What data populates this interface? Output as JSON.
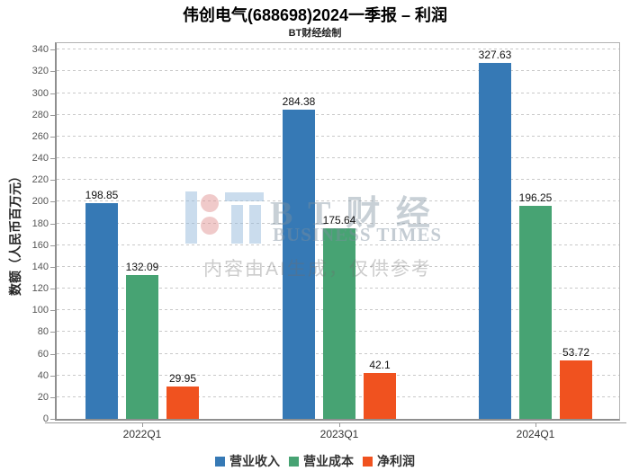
{
  "title": "伟创电气(688698)2024一季报 – 利润",
  "subtitle": "BT财经绘制",
  "watermark": {
    "logo_name": "bt-logo",
    "brand_cn": "B T 财 经",
    "brand_en": "BUSINESS TIMES",
    "ai_notice": "内容由AI生成，仅供参考"
  },
  "chart_data": {
    "type": "bar",
    "title": "伟创电气(688698)2024一季报 – 利润",
    "subtitle": "BT财经绘制",
    "categories": [
      "2022Q1",
      "2023Q1",
      "2024Q1"
    ],
    "series": [
      {
        "name": "营业收入",
        "color": "#3679b5",
        "values": [
          198.85,
          284.38,
          327.63
        ],
        "labels": [
          "198.85",
          "284.38",
          "327.63"
        ]
      },
      {
        "name": "营业成本",
        "color": "#47a373",
        "values": [
          132.09,
          175.64,
          196.25
        ],
        "labels": [
          "132.09",
          "175.64",
          "196.25"
        ]
      },
      {
        "name": "净利润",
        "color": "#f0521f",
        "values": [
          29.95,
          42.1,
          53.72
        ],
        "labels": [
          "29.95",
          "42.1",
          "53.72"
        ]
      }
    ],
    "xlabel": "",
    "ylabel": "数额（人民币百万元）",
    "ylim": [
      0,
      340
    ],
    "ytick_step": 20,
    "yticks": [
      "0",
      "20",
      "40",
      "60",
      "80",
      "100",
      "120",
      "140",
      "160",
      "180",
      "200",
      "220",
      "240",
      "260",
      "280",
      "300",
      "320",
      "340"
    ],
    "grid": "horizontal-dashed",
    "legend_position": "bottom"
  }
}
